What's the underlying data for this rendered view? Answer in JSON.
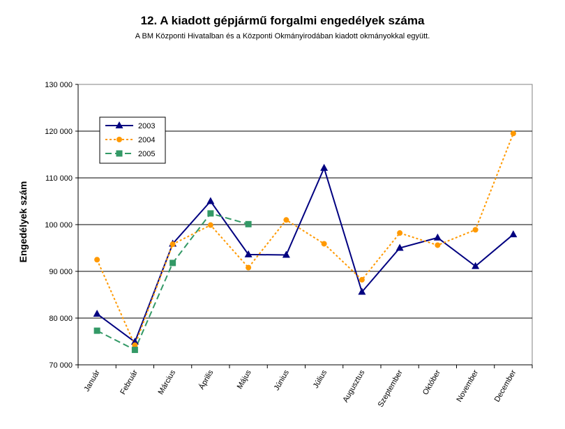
{
  "chart_data": {
    "type": "line",
    "title": "12. A  kiadott gépjármű forgalmi engedélyek száma",
    "subtitle": "A BM Központi Hivatalban és a Központi Okmányirodában kiadott okmányokkal együtt.",
    "ylabel": "Engedélyek szám",
    "xlabel": "",
    "categories": [
      "Január",
      "Február",
      "Március",
      "Április",
      "Május",
      "Június",
      "Július",
      "Augusztus",
      "Szeptember",
      "Október",
      "November",
      "December"
    ],
    "ylim": [
      70000,
      130000
    ],
    "yticks": [
      70000,
      80000,
      90000,
      100000,
      110000,
      120000,
      130000
    ],
    "ytick_labels": [
      "70 000",
      "80 000",
      "90 000",
      "100 000",
      "110 000",
      "120 000",
      "130 000"
    ],
    "grid": "horizontal",
    "legend_position": "top-left",
    "series": [
      {
        "name": "2003",
        "color": "#000080",
        "dash": "solid",
        "marker": "triangle",
        "values": [
          80900,
          74900,
          95900,
          105000,
          93600,
          93500,
          112100,
          85600,
          95000,
          97200,
          91100,
          97900
        ]
      },
      {
        "name": "2004",
        "color": "#FF9900",
        "dash": "dotted",
        "marker": "circle",
        "values": [
          92500,
          74200,
          95800,
          99900,
          90800,
          101000,
          95900,
          88200,
          98200,
          95600,
          98900,
          119500
        ]
      },
      {
        "name": "2005",
        "color": "#339966",
        "dash": "dashed",
        "marker": "square",
        "values": [
          77300,
          73200,
          91800,
          102400,
          100100,
          null,
          null,
          null,
          null,
          null,
          null,
          null
        ]
      }
    ]
  }
}
